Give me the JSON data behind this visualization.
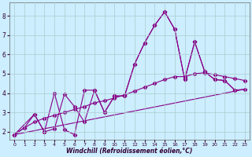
{
  "xlabel": "Windchill (Refroidissement éolien,°C)",
  "bg_color": "#cceeff",
  "line_color": "#880088",
  "grid_color": "#aacccc",
  "xlim": [
    -0.5,
    23.5
  ],
  "ylim": [
    1.6,
    8.7
  ],
  "xticks": [
    0,
    1,
    2,
    3,
    4,
    5,
    6,
    7,
    8,
    9,
    10,
    11,
    12,
    13,
    14,
    15,
    16,
    17,
    18,
    19,
    20,
    21,
    22,
    23
  ],
  "yticks": [
    2,
    3,
    4,
    5,
    6,
    7,
    8
  ],
  "series1_x": [
    0,
    1,
    2,
    3,
    4,
    5,
    6,
    7,
    8,
    9,
    10,
    11,
    12,
    13,
    14,
    15,
    16,
    17,
    18,
    19,
    20,
    21,
    22
  ],
  "series1_y": [
    1.85,
    2.2,
    2.9,
    2.0,
    4.0,
    2.1,
    1.85,
    4.15,
    4.15,
    3.0,
    3.85,
    3.85,
    5.5,
    6.6,
    7.5,
    8.2,
    7.3,
    4.7,
    6.65,
    5.1,
    4.7,
    4.65,
    4.15
  ],
  "series2_x": [
    0,
    2,
    3,
    4,
    5,
    6,
    7,
    8,
    9,
    10,
    11,
    12,
    13,
    14,
    15,
    16,
    17,
    18,
    19,
    20,
    21,
    22,
    23
  ],
  "series2_y": [
    1.85,
    2.9,
    2.0,
    2.15,
    3.95,
    3.3,
    2.5,
    4.15,
    3.0,
    3.85,
    3.85,
    5.5,
    6.6,
    7.5,
    8.2,
    7.3,
    4.7,
    6.65,
    5.1,
    4.7,
    4.65,
    4.15,
    4.2
  ],
  "series3_x": [
    0,
    1,
    2,
    3,
    4,
    5,
    6,
    7,
    8,
    9,
    10,
    11,
    12,
    13,
    14,
    15,
    16,
    17,
    18,
    19,
    20,
    21,
    22,
    23
  ],
  "series3_y": [
    1.85,
    2.2,
    2.5,
    2.7,
    2.85,
    3.0,
    3.15,
    3.3,
    3.5,
    3.6,
    3.75,
    3.9,
    4.1,
    4.3,
    4.5,
    4.7,
    4.85,
    4.85,
    5.0,
    5.05,
    4.95,
    4.85,
    4.75,
    4.65
  ],
  "series4_x": [
    0,
    23
  ],
  "series4_y": [
    1.85,
    4.2
  ]
}
